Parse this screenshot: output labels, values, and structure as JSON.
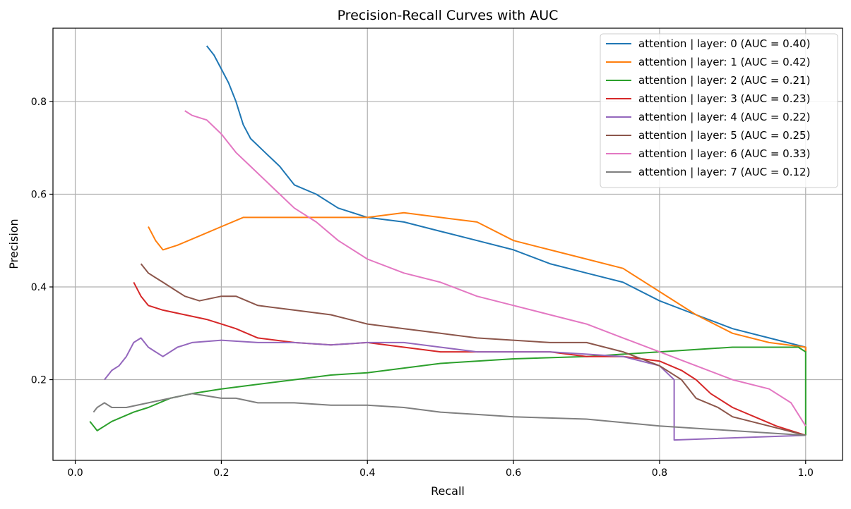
{
  "chart_data": {
    "type": "line",
    "title": "Precision-Recall Curves with AUC",
    "xlabel": "Recall",
    "ylabel": "Precision",
    "xlim": [
      -0.0305,
      1.0505
    ],
    "ylim": [
      0.026,
      0.958
    ],
    "xticks": [
      0.0,
      0.2,
      0.4,
      0.6,
      0.8,
      1.0
    ],
    "yticks": [
      0.2,
      0.4,
      0.6,
      0.8
    ],
    "grid": true,
    "legend_position": "upper right",
    "series": [
      {
        "name": "attention | layer: 0 (AUC = 0.40)",
        "color": "#1f77b4",
        "x": [
          0.18,
          0.19,
          0.2,
          0.21,
          0.22,
          0.23,
          0.24,
          0.26,
          0.28,
          0.3,
          0.33,
          0.36,
          0.4,
          0.45,
          0.5,
          0.55,
          0.6,
          0.65,
          0.7,
          0.75,
          0.8,
          0.85,
          0.9,
          0.95,
          1.0,
          1.0
        ],
        "y": [
          0.92,
          0.9,
          0.87,
          0.84,
          0.8,
          0.75,
          0.72,
          0.69,
          0.66,
          0.62,
          0.6,
          0.57,
          0.55,
          0.54,
          0.52,
          0.5,
          0.48,
          0.45,
          0.43,
          0.41,
          0.37,
          0.34,
          0.31,
          0.29,
          0.27,
          0.26
        ]
      },
      {
        "name": "attention | layer: 1 (AUC = 0.42)",
        "color": "#ff7f0e",
        "x": [
          0.1,
          0.11,
          0.12,
          0.14,
          0.17,
          0.2,
          0.23,
          0.27,
          0.3,
          0.35,
          0.4,
          0.45,
          0.5,
          0.55,
          0.6,
          0.65,
          0.7,
          0.75,
          0.8,
          0.85,
          0.9,
          0.95,
          1.0,
          1.0
        ],
        "y": [
          0.53,
          0.5,
          0.48,
          0.49,
          0.51,
          0.53,
          0.55,
          0.55,
          0.55,
          0.55,
          0.55,
          0.56,
          0.55,
          0.54,
          0.5,
          0.48,
          0.46,
          0.44,
          0.39,
          0.34,
          0.3,
          0.28,
          0.27,
          0.26
        ]
      },
      {
        "name": "attention | layer: 2 (AUC = 0.21)",
        "color": "#2ca02c",
        "x": [
          0.02,
          0.025,
          0.03,
          0.05,
          0.08,
          0.1,
          0.13,
          0.16,
          0.2,
          0.25,
          0.3,
          0.35,
          0.4,
          0.45,
          0.5,
          0.6,
          0.7,
          0.8,
          0.9,
          0.95,
          0.99,
          1.0,
          1.0
        ],
        "y": [
          0.11,
          0.1,
          0.09,
          0.11,
          0.13,
          0.14,
          0.16,
          0.17,
          0.18,
          0.19,
          0.2,
          0.21,
          0.215,
          0.225,
          0.235,
          0.245,
          0.25,
          0.26,
          0.27,
          0.27,
          0.27,
          0.26,
          0.08
        ]
      },
      {
        "name": "attention | layer: 3 (AUC = 0.23)",
        "color": "#d62728",
        "x": [
          0.08,
          0.09,
          0.1,
          0.12,
          0.15,
          0.18,
          0.2,
          0.22,
          0.25,
          0.3,
          0.35,
          0.4,
          0.45,
          0.5,
          0.55,
          0.6,
          0.65,
          0.7,
          0.75,
          0.8,
          0.83,
          0.85,
          0.87,
          0.9,
          0.93,
          0.96,
          1.0
        ],
        "y": [
          0.41,
          0.38,
          0.36,
          0.35,
          0.34,
          0.33,
          0.32,
          0.31,
          0.29,
          0.28,
          0.275,
          0.28,
          0.27,
          0.26,
          0.26,
          0.26,
          0.26,
          0.25,
          0.25,
          0.24,
          0.22,
          0.2,
          0.17,
          0.14,
          0.12,
          0.1,
          0.08
        ]
      },
      {
        "name": "attention | layer: 4 (AUC = 0.22)",
        "color": "#9467bd",
        "x": [
          0.04,
          0.05,
          0.06,
          0.07,
          0.08,
          0.09,
          0.1,
          0.11,
          0.12,
          0.14,
          0.16,
          0.2,
          0.25,
          0.3,
          0.35,
          0.4,
          0.45,
          0.5,
          0.55,
          0.6,
          0.65,
          0.7,
          0.75,
          0.8,
          0.82,
          0.82,
          1.0
        ],
        "y": [
          0.2,
          0.22,
          0.23,
          0.25,
          0.28,
          0.29,
          0.27,
          0.26,
          0.25,
          0.27,
          0.28,
          0.285,
          0.28,
          0.28,
          0.275,
          0.28,
          0.28,
          0.27,
          0.26,
          0.26,
          0.26,
          0.255,
          0.25,
          0.23,
          0.2,
          0.07,
          0.08
        ]
      },
      {
        "name": "attention | layer: 5 (AUC = 0.25)",
        "color": "#8c564b",
        "x": [
          0.09,
          0.1,
          0.11,
          0.12,
          0.13,
          0.14,
          0.15,
          0.17,
          0.2,
          0.22,
          0.25,
          0.3,
          0.35,
          0.4,
          0.45,
          0.5,
          0.55,
          0.6,
          0.65,
          0.7,
          0.75,
          0.8,
          0.83,
          0.85,
          0.88,
          0.9,
          0.95,
          1.0
        ],
        "y": [
          0.45,
          0.43,
          0.42,
          0.41,
          0.4,
          0.39,
          0.38,
          0.37,
          0.38,
          0.38,
          0.36,
          0.35,
          0.34,
          0.32,
          0.31,
          0.3,
          0.29,
          0.285,
          0.28,
          0.28,
          0.26,
          0.23,
          0.2,
          0.16,
          0.14,
          0.12,
          0.1,
          0.08
        ]
      },
      {
        "name": "attention | layer: 6 (AUC = 0.33)",
        "color": "#e377c2",
        "x": [
          0.15,
          0.16,
          0.18,
          0.2,
          0.22,
          0.24,
          0.26,
          0.28,
          0.3,
          0.33,
          0.36,
          0.4,
          0.45,
          0.5,
          0.55,
          0.6,
          0.65,
          0.7,
          0.75,
          0.8,
          0.85,
          0.9,
          0.95,
          0.98,
          1.0
        ],
        "y": [
          0.78,
          0.77,
          0.76,
          0.73,
          0.69,
          0.66,
          0.63,
          0.6,
          0.57,
          0.54,
          0.5,
          0.46,
          0.43,
          0.41,
          0.38,
          0.36,
          0.34,
          0.32,
          0.29,
          0.26,
          0.23,
          0.2,
          0.18,
          0.15,
          0.1
        ]
      },
      {
        "name": "attention | layer: 7 (AUC = 0.12)",
        "color": "#7f7f7f",
        "x": [
          0.025,
          0.03,
          0.04,
          0.05,
          0.07,
          0.1,
          0.13,
          0.16,
          0.2,
          0.22,
          0.25,
          0.3,
          0.35,
          0.4,
          0.45,
          0.5,
          0.55,
          0.6,
          0.7,
          0.8,
          0.9,
          1.0
        ],
        "y": [
          0.13,
          0.14,
          0.15,
          0.14,
          0.14,
          0.15,
          0.16,
          0.17,
          0.16,
          0.16,
          0.15,
          0.15,
          0.145,
          0.145,
          0.14,
          0.13,
          0.125,
          0.12,
          0.115,
          0.1,
          0.09,
          0.08
        ]
      }
    ]
  }
}
